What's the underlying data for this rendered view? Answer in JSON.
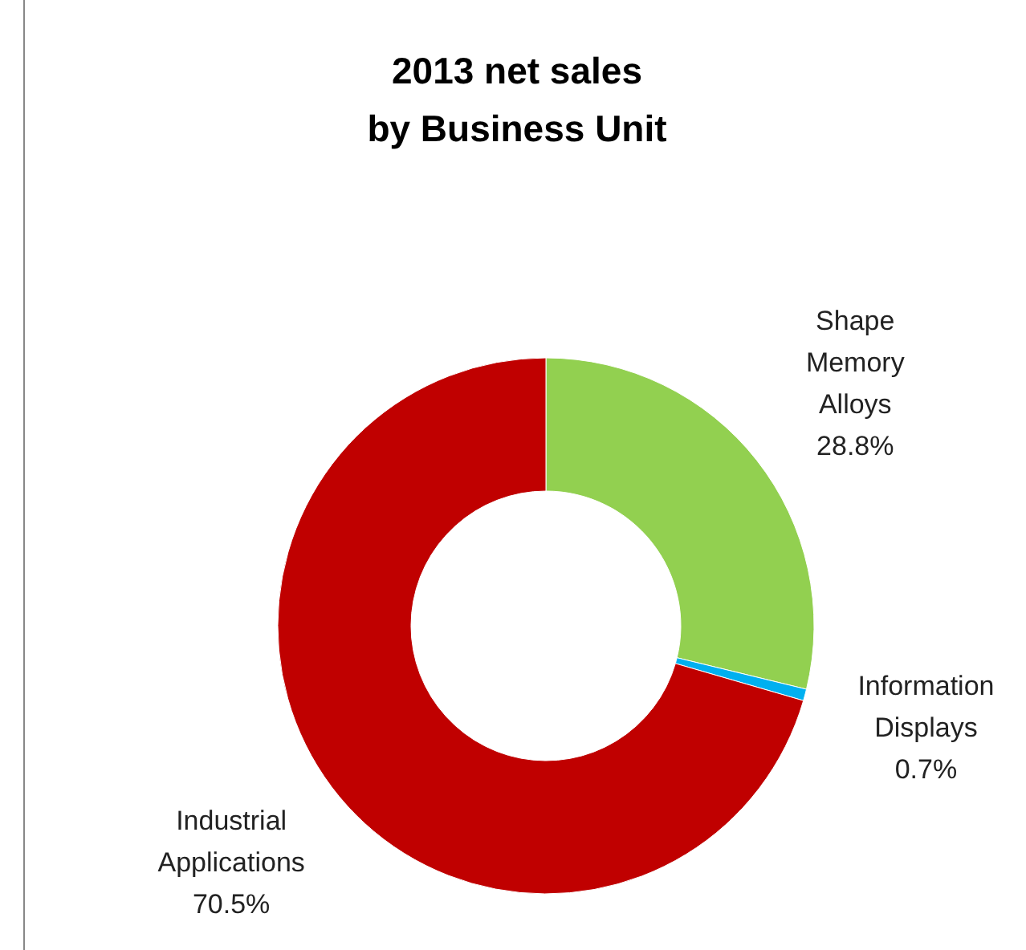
{
  "chart_data": {
    "type": "donut",
    "title": "2013 net sales\nby Business Unit",
    "categories": [
      "Shape Memory Alloys",
      "Information Displays",
      "Industrial Applications"
    ],
    "values": [
      28.8,
      0.7,
      70.5
    ],
    "colors": [
      "#92d050",
      "#00b0f0",
      "#c00000"
    ],
    "value_labels": [
      "28.8%",
      "0.7%",
      "70.5%"
    ]
  }
}
